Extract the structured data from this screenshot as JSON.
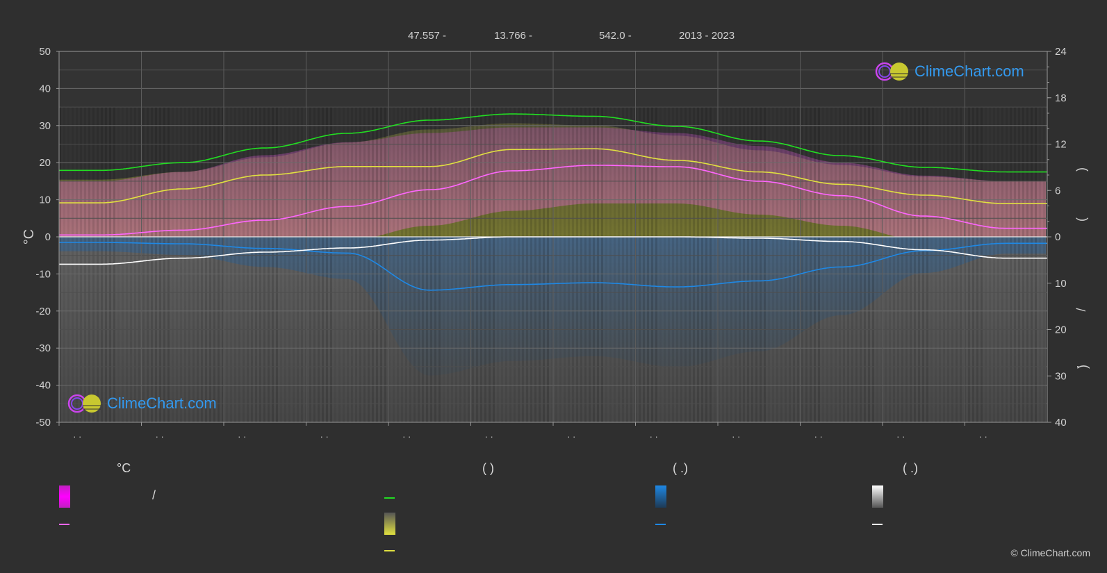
{
  "header": {
    "latitude": "47.557 -",
    "longitude": "13.766 -",
    "elevation": "542.0 -",
    "period": "2013 - 2023"
  },
  "logo": {
    "text": "ClimeChart.com"
  },
  "copyright": "© ClimeChart.com",
  "colors": {
    "background": "#2f2f2f",
    "grid": "#5a5a5a",
    "daylight": "#22dd22",
    "sunshine": "#e0e040",
    "temp_max_band": "#e040e0",
    "temp_mean": "#ff66ff",
    "rain": "#1e88e5",
    "snow": "#ffffff",
    "logo_text": "#3399ee"
  },
  "legend": {
    "col1": {
      "heading": "°C",
      "band_label": "/"
    },
    "col2": {
      "heading": "(          )"
    },
    "col3": {
      "heading": "(   .)"
    },
    "col4": {
      "heading": "(   .)"
    }
  },
  "chart_data": {
    "type": "line",
    "left_axis": {
      "label": "°C",
      "ylim": [
        -50,
        50
      ],
      "ticks": [
        "50",
        "40",
        "30",
        "20",
        "10",
        "0",
        "-10",
        "-20",
        "-30",
        "-40",
        "-50"
      ]
    },
    "right_axis_top": {
      "ylim": [
        0,
        24
      ],
      "ticks": [
        "24",
        "18",
        "12",
        "6",
        "0"
      ]
    },
    "right_axis_bottom": {
      "ylim": [
        0,
        40
      ],
      "ticks": [
        "10",
        "20",
        "30",
        "40"
      ]
    },
    "right_axis_label_glyphs": [
      "(",
      ")",
      "(",
      ")",
      "/",
      "(",
      "·",
      ")"
    ],
    "months": 12,
    "x_tick_labels": [
      "· ·",
      "· ·",
      "· ·",
      "· ·",
      "· ·",
      "· ·",
      "· ·",
      "· ·",
      "· ·",
      "· ·",
      "· ·",
      "· ·"
    ],
    "grid": true,
    "series": [
      {
        "key": "daylight",
        "axis": "right_top",
        "color": "#22dd22",
        "values": [
          8.6,
          9.6,
          11.5,
          13.4,
          15.1,
          15.9,
          15.6,
          14.3,
          12.4,
          10.5,
          9.0,
          8.4
        ]
      },
      {
        "key": "sunshine",
        "axis": "right_top",
        "color": "#e0e040",
        "values": [
          4.4,
          6.2,
          8.0,
          9.1,
          9.1,
          11.3,
          11.4,
          9.9,
          8.4,
          6.8,
          5.4,
          4.3
        ]
      },
      {
        "key": "temp_mean",
        "axis": "left",
        "color": "#ff66ff",
        "values": [
          0.5,
          1.8,
          4.5,
          8.2,
          12.7,
          17.8,
          19.3,
          18.9,
          15.0,
          11.1,
          5.6,
          2.3
        ]
      },
      {
        "key": "rain",
        "axis": "right_bottom",
        "color": "#1e88e5",
        "values": [
          1.2,
          1.5,
          2.5,
          3.5,
          11.5,
          10.3,
          9.9,
          10.8,
          9.5,
          6.5,
          3.0,
          1.4
        ]
      },
      {
        "key": "snow",
        "axis": "right_bottom",
        "color": "#ffffff",
        "values": [
          5.9,
          4.6,
          3.3,
          2.4,
          0.7,
          0.0,
          0.0,
          0.0,
          0.3,
          1.0,
          2.8,
          4.6
        ]
      }
    ],
    "temp_max_band_top": [
      15.0,
      17.5,
      22.0,
      25.5,
      28.0,
      29.5,
      29.5,
      28.0,
      24.5,
      20.0,
      16.5,
      15.0
    ],
    "temp_min_band_bottom": [
      -5,
      -4,
      -3,
      -1,
      3,
      7,
      9,
      9,
      6,
      3,
      -1,
      -4
    ]
  }
}
